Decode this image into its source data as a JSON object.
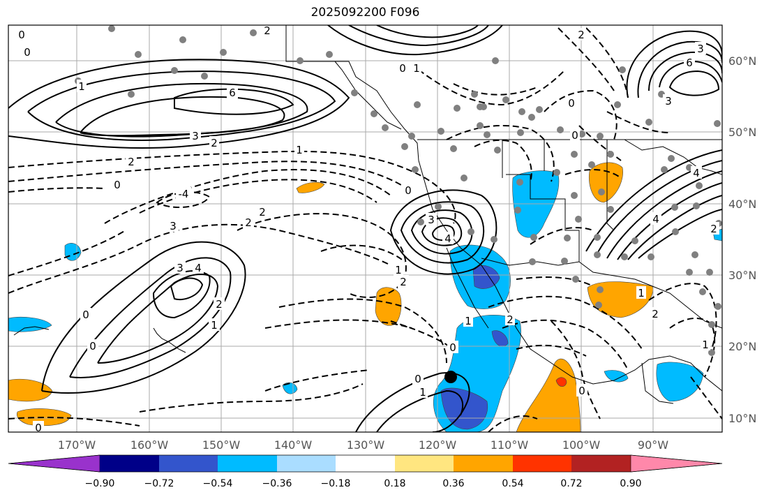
{
  "title": "2025092200 F096",
  "map": {
    "lon_ticks": [
      "170°W",
      "160°W",
      "150°W",
      "140°W",
      "130°W",
      "120°W",
      "110°W",
      "100°W",
      "90°W"
    ],
    "lat_ticks": [
      "60°N",
      "50°N",
      "40°N",
      "30°N",
      "20°N",
      "10°N"
    ],
    "grid": true
  },
  "colorbar": {
    "tick_labels": [
      "−0.90",
      "−0.72",
      "−0.54",
      "−0.36",
      "−0.18",
      "0.18",
      "0.36",
      "0.54",
      "0.72",
      "0.90"
    ],
    "colors": [
      "#9932cc",
      "#000088",
      "#3355cc",
      "#00bbff",
      "#aaddff",
      "#ffffff",
      "#ffe680",
      "#ffa500",
      "#ff3300",
      "#b22222",
      "#ff88aa"
    ],
    "extend": "both"
  },
  "contour_labels": [
    "0",
    "2",
    "0",
    "1",
    "6",
    "3",
    "2",
    "1",
    "2",
    "0",
    "-4",
    "3",
    "2",
    "2",
    "3",
    "4",
    "2",
    "1",
    "0",
    "0",
    "3",
    "4",
    "1",
    "2",
    "1",
    "2",
    "0",
    "1",
    "0",
    "0",
    "1",
    "2",
    "4",
    "3",
    "6",
    "3",
    "2",
    "2",
    "4",
    "0",
    "1",
    "0",
    "0",
    "0",
    "1",
    "0"
  ]
}
